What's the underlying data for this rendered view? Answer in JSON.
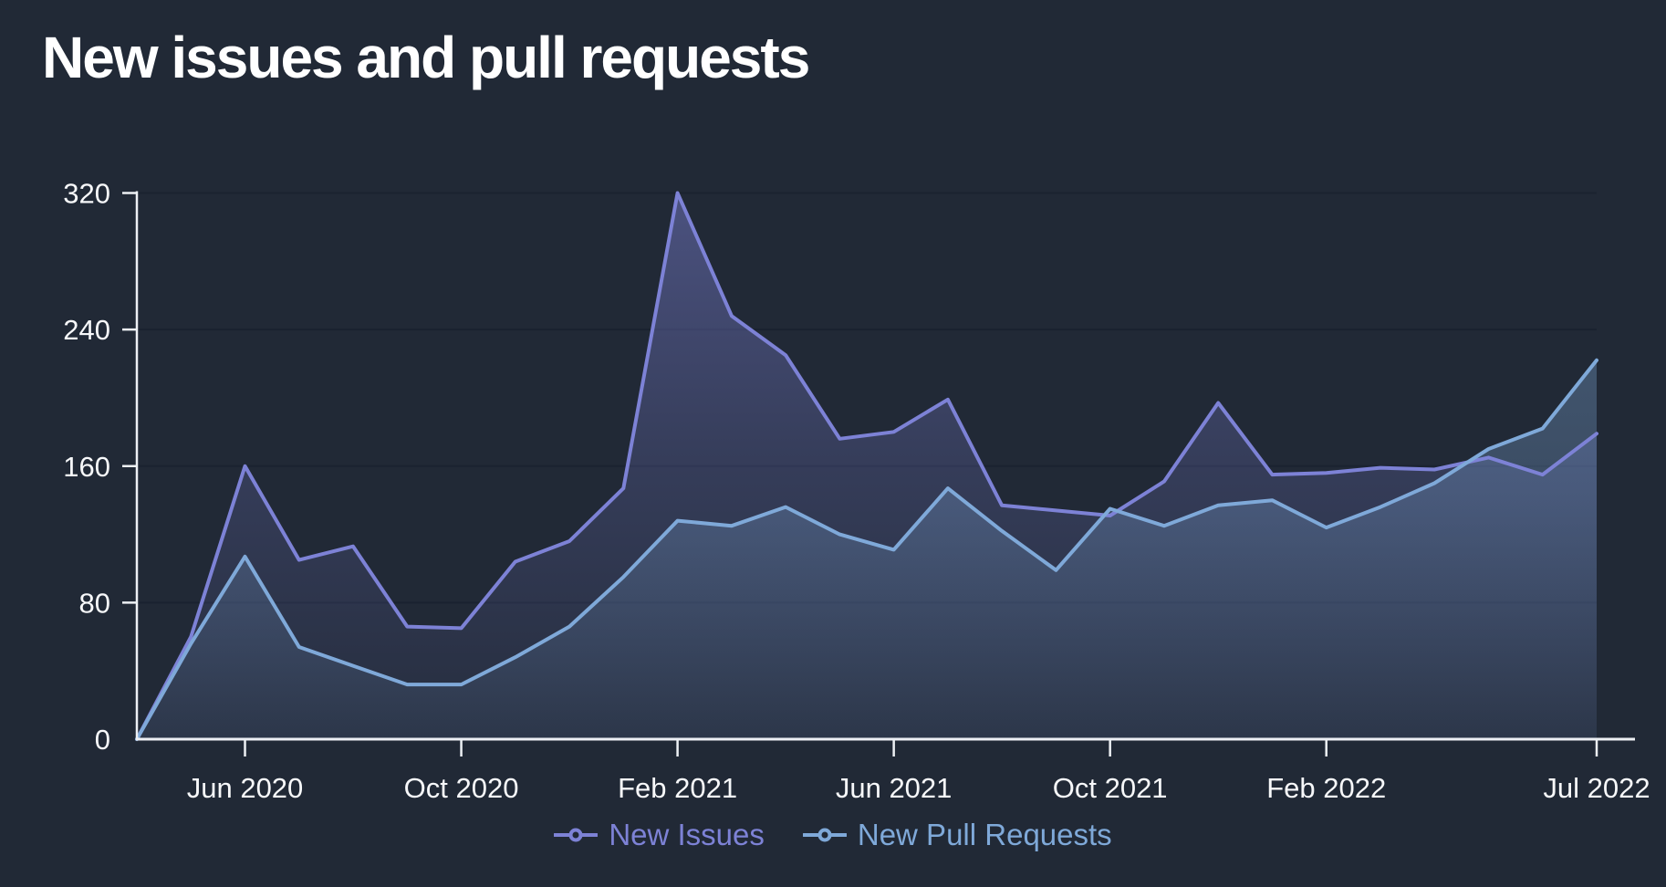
{
  "page": {
    "background": "#212936"
  },
  "style": {
    "title_color": "#ffffff",
    "axis_color": "#edf0f4",
    "label_color": "#f7f8fa",
    "grid_color": "#1a2230"
  },
  "chart_data": {
    "type": "area",
    "title": "New issues and pull requests",
    "xlabel": "",
    "ylabel": "",
    "ylim": [
      0,
      320
    ],
    "y_ticks": [
      0,
      80,
      160,
      240,
      320
    ],
    "grid": true,
    "legend_position": "bottom",
    "x": [
      "Apr 2020",
      "May 2020",
      "Jun 2020",
      "Jul 2020",
      "Aug 2020",
      "Sep 2020",
      "Oct 2020",
      "Nov 2020",
      "Dec 2020",
      "Jan 2021",
      "Feb 2021",
      "Mar 2021",
      "Apr 2021",
      "May 2021",
      "Jun 2021",
      "Jul 2021",
      "Aug 2021",
      "Sep 2021",
      "Oct 2021",
      "Nov 2021",
      "Dec 2021",
      "Jan 2022",
      "Feb 2022",
      "Mar 2022",
      "Apr 2022",
      "May 2022",
      "Jun 2022",
      "Jul 2022"
    ],
    "x_tick_labels": [
      {
        "index": 2,
        "label": "Jun 2020"
      },
      {
        "index": 6,
        "label": "Oct 2020"
      },
      {
        "index": 10,
        "label": "Feb 2021"
      },
      {
        "index": 14,
        "label": "Jun 2021"
      },
      {
        "index": 18,
        "label": "Oct 2021"
      },
      {
        "index": 22,
        "label": "Feb 2022"
      },
      {
        "index": 27,
        "label": "Jul 2022"
      }
    ],
    "series": [
      {
        "name": "New Issues",
        "color": "#7d82d6",
        "values": [
          0,
          60,
          160,
          105,
          113,
          66,
          65,
          104,
          116,
          147,
          320,
          248,
          225,
          176,
          180,
          199,
          137,
          134,
          131,
          151,
          197,
          155,
          156,
          159,
          158,
          165,
          155,
          179
        ]
      },
      {
        "name": "New Pull Requests",
        "color": "#7fa9d9",
        "values": [
          0,
          56,
          107,
          54,
          43,
          32,
          32,
          48,
          66,
          95,
          128,
          125,
          136,
          120,
          111,
          147,
          122,
          99,
          135,
          125,
          137,
          140,
          124,
          136,
          150,
          170,
          182,
          222
        ]
      }
    ]
  }
}
